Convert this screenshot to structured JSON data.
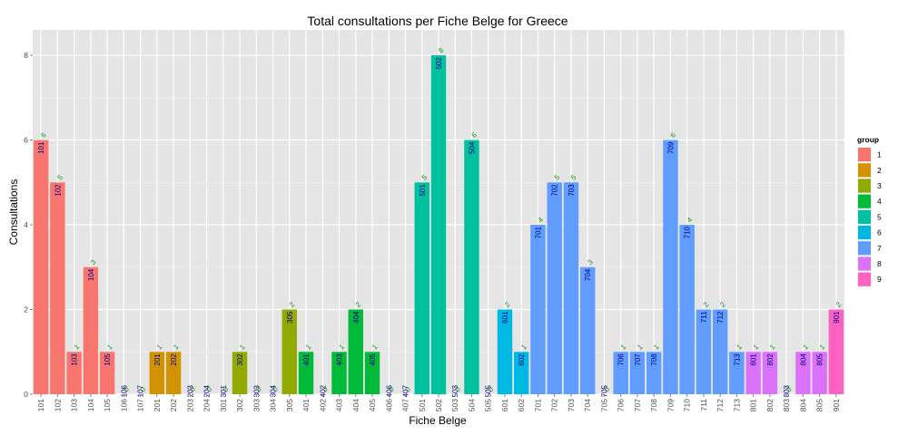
{
  "chart_data": {
    "type": "bar",
    "title": "Total consultations per Fiche Belge for Greece",
    "xlabel": "Fiche Belge",
    "ylabel": "Consultations",
    "ylim": [
      0,
      8.6
    ],
    "yticks": [
      0,
      2,
      4,
      6,
      8
    ],
    "grid": true,
    "legend": {
      "title": "group",
      "position": "right"
    },
    "groups": [
      {
        "name": "1",
        "color": "#F8766D"
      },
      {
        "name": "2",
        "color": "#D39200"
      },
      {
        "name": "3",
        "color": "#93AA00"
      },
      {
        "name": "4",
        "color": "#00BA38"
      },
      {
        "name": "5",
        "color": "#00C19F"
      },
      {
        "name": "6",
        "color": "#00B9E3"
      },
      {
        "name": "7",
        "color": "#619CFF"
      },
      {
        "name": "8",
        "color": "#DB72FB"
      },
      {
        "name": "9",
        "color": "#FF61C3"
      }
    ],
    "categories": [
      "101",
      "102",
      "103",
      "104",
      "105",
      "106",
      "107",
      "201",
      "202",
      "203",
      "204",
      "301",
      "302",
      "303",
      "304",
      "305",
      "401",
      "402",
      "403",
      "404",
      "405",
      "406",
      "407",
      "501",
      "502",
      "503",
      "504",
      "505",
      "601",
      "602",
      "701",
      "702",
      "703",
      "704",
      "705",
      "706",
      "707",
      "708",
      "709",
      "710",
      "711",
      "712",
      "713",
      "801",
      "802",
      "803",
      "804",
      "805",
      "901"
    ],
    "values": [
      6,
      5,
      1,
      3,
      1,
      0,
      0,
      1,
      1,
      0,
      0,
      0,
      1,
      0,
      0,
      2,
      1,
      0,
      1,
      2,
      1,
      0,
      0,
      5,
      8,
      0,
      6,
      0,
      2,
      1,
      4,
      5,
      5,
      3,
      0,
      1,
      1,
      1,
      6,
      4,
      2,
      2,
      1,
      1,
      1,
      0,
      1,
      1,
      2
    ],
    "group": [
      "1",
      "1",
      "1",
      "1",
      "1",
      "1",
      "1",
      "2",
      "2",
      "2",
      "2",
      "3",
      "3",
      "3",
      "3",
      "3",
      "4",
      "4",
      "4",
      "4",
      "4",
      "4",
      "4",
      "5",
      "5",
      "5",
      "5",
      "5",
      "6",
      "6",
      "7",
      "7",
      "7",
      "7",
      "7",
      "7",
      "7",
      "7",
      "7",
      "7",
      "7",
      "7",
      "7",
      "8",
      "8",
      "8",
      "8",
      "8",
      "9"
    ]
  }
}
